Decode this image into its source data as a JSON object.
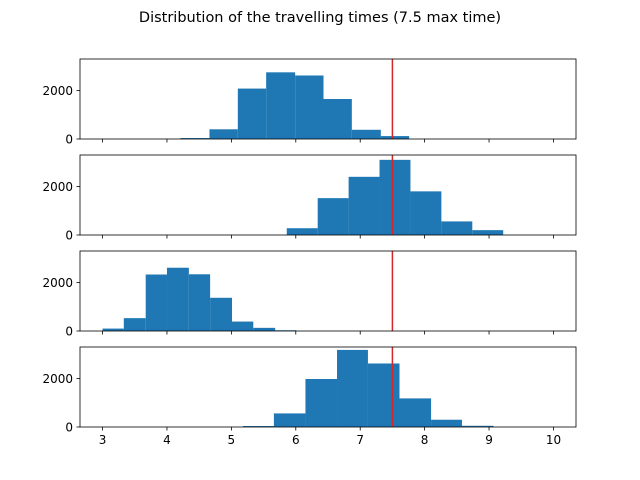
{
  "figure": {
    "suptitle": "Distribution of the travelling times (7.5 max time)"
  },
  "chart_data": [
    {
      "type": "bar",
      "subtype": "histogram",
      "bar_color": "#1f77b4",
      "xlim": [
        2.65,
        10.35
      ],
      "ylim": [
        0,
        3300
      ],
      "yticks": [
        0,
        2000
      ],
      "xticks": [
        3,
        4,
        5,
        6,
        7,
        8,
        9,
        10
      ],
      "show_xtick_labels": false,
      "vline": {
        "x": 7.5,
        "color": "#d62728"
      },
      "bins": [
        {
          "x0": 4.21,
          "x1": 4.66,
          "count": 40
        },
        {
          "x0": 4.66,
          "x1": 5.1,
          "count": 400
        },
        {
          "x0": 5.1,
          "x1": 5.54,
          "count": 2080
        },
        {
          "x0": 5.54,
          "x1": 5.99,
          "count": 2750
        },
        {
          "x0": 5.99,
          "x1": 6.43,
          "count": 2620
        },
        {
          "x0": 6.43,
          "x1": 6.87,
          "count": 1650
        },
        {
          "x0": 6.87,
          "x1": 7.32,
          "count": 380
        },
        {
          "x0": 7.32,
          "x1": 7.76,
          "count": 120
        }
      ]
    },
    {
      "type": "bar",
      "subtype": "histogram",
      "bar_color": "#1f77b4",
      "xlim": [
        2.65,
        10.35
      ],
      "ylim": [
        0,
        3300
      ],
      "yticks": [
        0,
        2000
      ],
      "xticks": [
        3,
        4,
        5,
        6,
        7,
        8,
        9,
        10
      ],
      "show_xtick_labels": false,
      "vline": {
        "x": 7.5,
        "color": "#d62728"
      },
      "bins": [
        {
          "x0": 5.86,
          "x1": 6.34,
          "count": 280
        },
        {
          "x0": 6.34,
          "x1": 6.82,
          "count": 1520
        },
        {
          "x0": 6.82,
          "x1": 7.3,
          "count": 2400
        },
        {
          "x0": 7.3,
          "x1": 7.78,
          "count": 3100
        },
        {
          "x0": 7.78,
          "x1": 8.26,
          "count": 1800
        },
        {
          "x0": 8.26,
          "x1": 8.74,
          "count": 560
        },
        {
          "x0": 8.74,
          "x1": 9.22,
          "count": 200
        }
      ]
    },
    {
      "type": "bar",
      "subtype": "histogram",
      "bar_color": "#1f77b4",
      "xlim": [
        2.65,
        10.35
      ],
      "ylim": [
        0,
        3300
      ],
      "yticks": [
        0,
        2000
      ],
      "xticks": [
        3,
        4,
        5,
        6,
        7,
        8,
        9,
        10
      ],
      "show_xtick_labels": false,
      "vline": {
        "x": 7.5,
        "color": "#d62728"
      },
      "bins": [
        {
          "x0": 3.0,
          "x1": 3.33,
          "count": 100
        },
        {
          "x0": 3.33,
          "x1": 3.67,
          "count": 530
        },
        {
          "x0": 3.67,
          "x1": 4.0,
          "count": 2330
        },
        {
          "x0": 4.0,
          "x1": 4.34,
          "count": 2610
        },
        {
          "x0": 4.34,
          "x1": 4.67,
          "count": 2340
        },
        {
          "x0": 4.67,
          "x1": 5.01,
          "count": 1370
        },
        {
          "x0": 5.01,
          "x1": 5.34,
          "count": 390
        },
        {
          "x0": 5.34,
          "x1": 5.68,
          "count": 130
        },
        {
          "x0": 5.68,
          "x1": 6.01,
          "count": 30
        }
      ]
    },
    {
      "type": "bar",
      "subtype": "histogram",
      "bar_color": "#1f77b4",
      "xlim": [
        2.65,
        10.35
      ],
      "ylim": [
        0,
        3300
      ],
      "yticks": [
        0,
        2000
      ],
      "xticks": [
        3,
        4,
        5,
        6,
        7,
        8,
        9,
        10
      ],
      "show_xtick_labels": true,
      "vline": {
        "x": 7.5,
        "color": "#d62728"
      },
      "bins": [
        {
          "x0": 5.18,
          "x1": 5.66,
          "count": 40
        },
        {
          "x0": 5.66,
          "x1": 6.15,
          "count": 560
        },
        {
          "x0": 6.15,
          "x1": 6.64,
          "count": 1980
        },
        {
          "x0": 6.64,
          "x1": 7.12,
          "count": 3180
        },
        {
          "x0": 7.12,
          "x1": 7.61,
          "count": 2620
        },
        {
          "x0": 7.61,
          "x1": 8.1,
          "count": 1180
        },
        {
          "x0": 8.1,
          "x1": 8.58,
          "count": 300
        },
        {
          "x0": 8.58,
          "x1": 9.07,
          "count": 50
        }
      ]
    }
  ]
}
